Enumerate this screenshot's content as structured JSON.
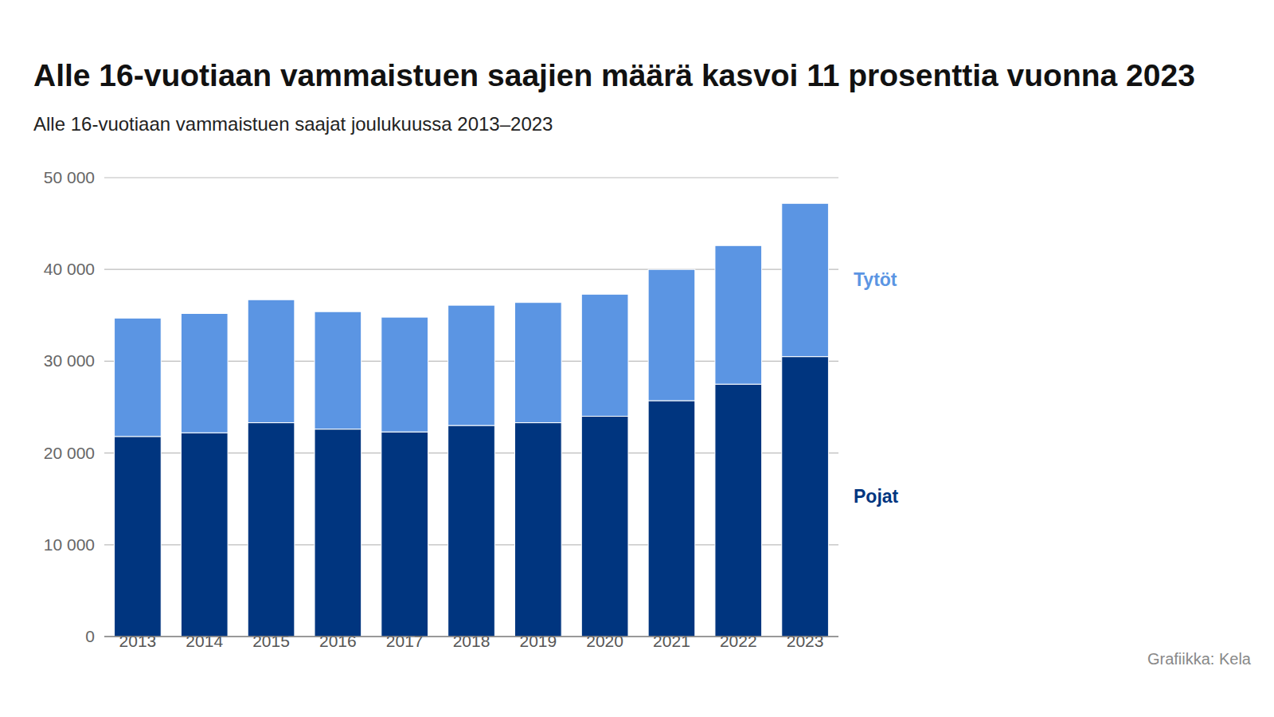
{
  "chart_data": {
    "type": "bar",
    "title": "Alle 16-vuotiaan vammaistuen saajien määrä kasvoi 11 prosenttia vuonna 2023",
    "subtitle": "Alle 16-vuotiaan vammaistuen saajat joulukuussa 2013–2023",
    "source": "Grafiikka: Kela",
    "categories": [
      "2013",
      "2014",
      "2015",
      "2016",
      "2017",
      "2018",
      "2019",
      "2020",
      "2021",
      "2022",
      "2023"
    ],
    "series": [
      {
        "name": "Pojat",
        "color": "#00357f",
        "values": [
          21800,
          22200,
          23300,
          22600,
          22300,
          23000,
          23300,
          24000,
          25700,
          27500,
          30500
        ]
      },
      {
        "name": "Tytöt",
        "color": "#5b95e3",
        "values": [
          12900,
          13000,
          13400,
          12800,
          12500,
          13100,
          13100,
          13300,
          14300,
          15100,
          16700
        ]
      }
    ],
    "stacked": true,
    "grid": true,
    "ylim": [
      0,
      50000
    ],
    "yticks": [
      0,
      {
        "value": 10000,
        "label": "10 000"
      },
      {
        "value": 20000,
        "label": "20 000"
      },
      {
        "value": 30000,
        "label": "30 000"
      },
      {
        "value": 40000,
        "label": "40 000"
      },
      {
        "value": 50000,
        "label": "50 000"
      }
    ]
  }
}
